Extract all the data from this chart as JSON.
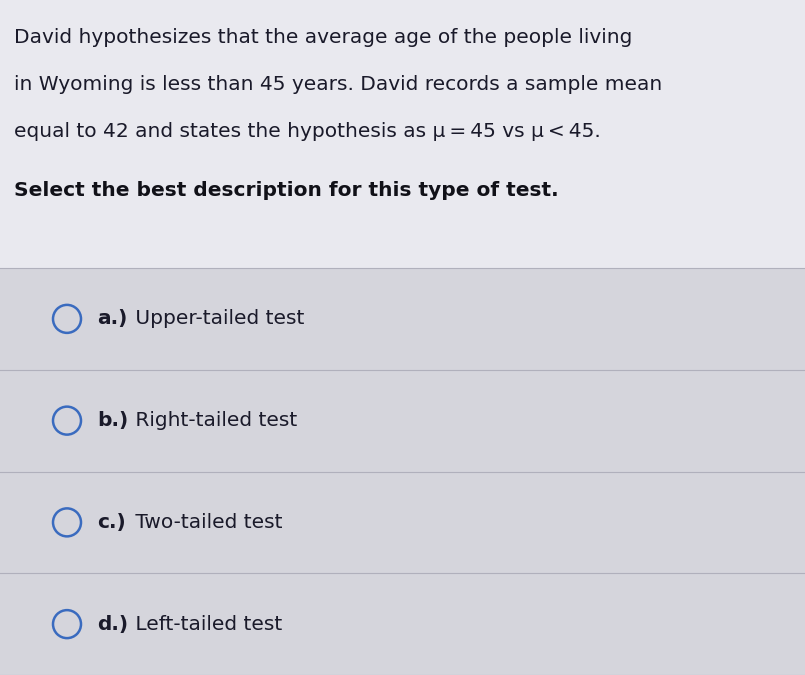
{
  "background_color": "#cbcbd3",
  "header_bg": "#e9e9ef",
  "options_bg": "#d5d5dc",
  "header_text_line1": "David hypothesizes that the average age of the people living",
  "header_text_line2": "in Wyoming is less than 45 years. David records a sample mean",
  "header_text_line3": "equal to 42 and states the hypothesis as μ = 45 vs μ < 45.",
  "question": "Select the best description for this type of test.",
  "options_bold": [
    "a.)",
    "b.)",
    "c.)",
    "d.)"
  ],
  "options_normal": [
    " Upper-tailed test",
    " Right-tailed test",
    " Two-tailed test",
    " Left-tailed test"
  ],
  "circle_color": "#3a6bbf",
  "text_color": "#1a1a2a",
  "question_color": "#111118",
  "option_text_color": "#1a1a2a",
  "header_fontsize": 14.5,
  "question_fontsize": 14.5,
  "option_fontsize": 14.5,
  "fig_width": 8.05,
  "fig_height": 6.75,
  "dpi": 100
}
